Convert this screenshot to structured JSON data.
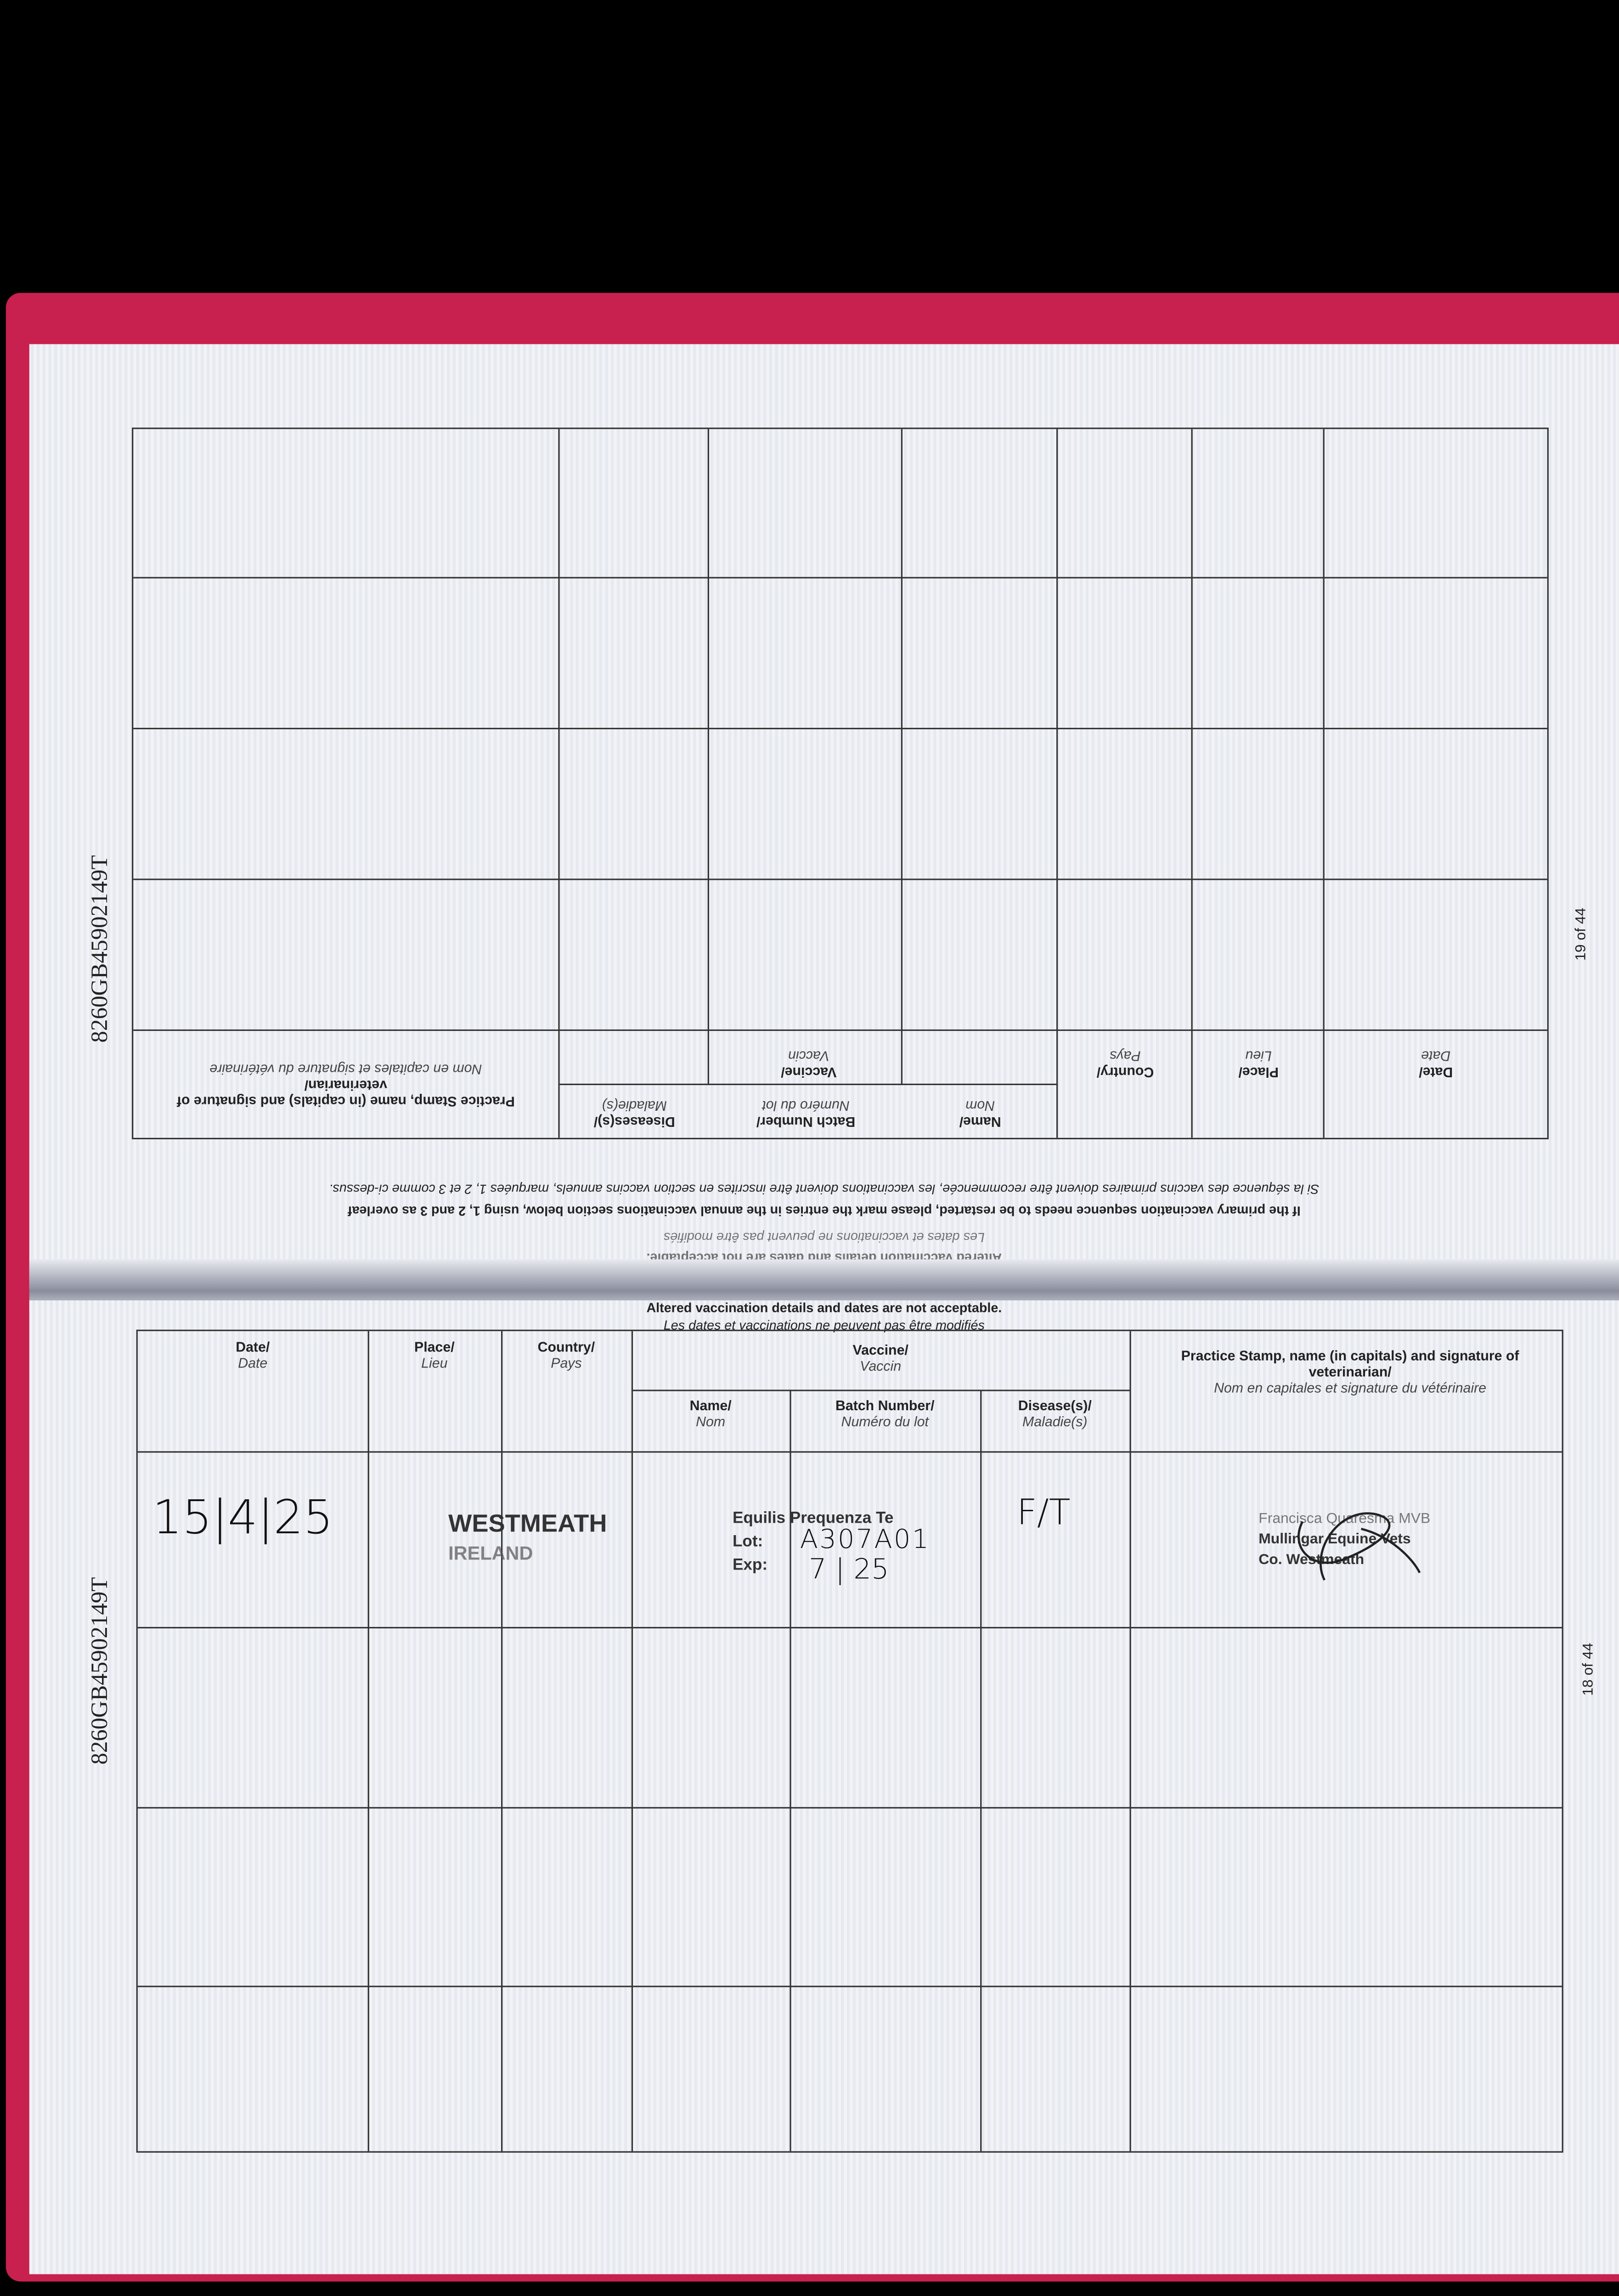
{
  "document_id": "8260GB45902149T",
  "notice": {
    "en": "Altered vaccination details and dates are not acceptable.",
    "fr": "Les dates et vaccinations ne peuvent pas être modifiés"
  },
  "instructions": {
    "en": "If the primary vaccination sequence needs to be restarted, please mark the entries in the annual vaccinations section below, using 1, 2 and 3 as overleaf",
    "fr": "Si la séquence des vaccins primaires doivent être recommencée, les vaccinations doivent être inscrites en section vaccins annuels, marquées 1, 2 et 3 comme ci-dessus."
  },
  "columns": {
    "date": {
      "en": "Date/",
      "fr": "Date"
    },
    "place": {
      "en": "Place/",
      "fr": "Lieu"
    },
    "country": {
      "en": "Country/",
      "fr": "Pays"
    },
    "vaccine": {
      "en": "Vaccine/",
      "fr": "Vaccin"
    },
    "name": {
      "en": "Name/",
      "fr": "Nom"
    },
    "batch": {
      "en": "Batch Number/",
      "fr": "Numéro du lot"
    },
    "disease_upper": {
      "en": "Diseases(s)/",
      "fr": "Maladie(s)"
    },
    "disease": {
      "en": "Disease(s)/",
      "fr": "Maladie(s)"
    },
    "practice": {
      "en": "Practice Stamp, name (in capitals) and signature of veterinarian/",
      "fr": "Nom en capitales et signature du vétérinaire"
    }
  },
  "upper_page": {
    "page_label": "19 of 44",
    "rows": 4
  },
  "lower_page": {
    "page_label": "18 of 44",
    "entry": {
      "date": "15|4|25",
      "place_line1": "WESTMEATH",
      "place_line2": "IRELAND",
      "vaccine_name": "Equilis Prequenza Te",
      "lot_label": "Lot:",
      "lot_value": "A307A01",
      "exp_label": "Exp:",
      "exp_value": "7 | 25",
      "disease": "F/T",
      "stamp_line1": "Francisca Quaresma MVB",
      "stamp_line2": "Mullingar Equine Vets",
      "stamp_line3": "Co. Westmeath"
    }
  },
  "colors": {
    "cover": "#c8204f",
    "page": "#eef0f4",
    "background": "#000000"
  }
}
